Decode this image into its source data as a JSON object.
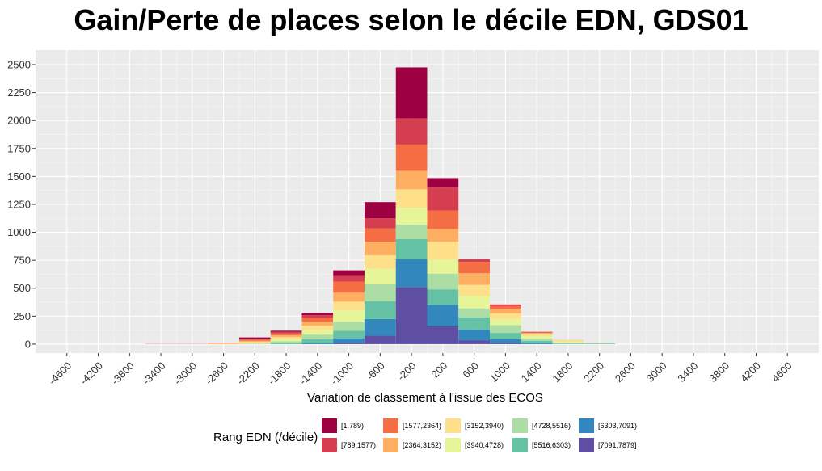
{
  "chart_data": {
    "type": "bar",
    "title": "Gain/Perte de places selon le décile EDN, GDS01",
    "xlabel": "Variation de classement à l'issue des ECOS",
    "ylabel": "",
    "xlim": [
      -5000,
      5000
    ],
    "ylim": [
      -80,
      2630
    ],
    "x_ticks": [
      -4600,
      -4200,
      -3800,
      -3400,
      -3000,
      -2600,
      -2200,
      -1800,
      -1400,
      -1000,
      -600,
      -200,
      200,
      600,
      1000,
      1400,
      1800,
      2200,
      2600,
      3000,
      3400,
      3800,
      4200,
      4600
    ],
    "y_ticks": [
      0,
      250,
      500,
      750,
      1000,
      1250,
      1500,
      1750,
      2000,
      2250,
      2500
    ],
    "bin_width": 400,
    "grid": true,
    "legend_title": "Rang EDN (/décile)",
    "legend_position": "bottom",
    "bins": [
      -3400,
      -3000,
      -2600,
      -2200,
      -1800,
      -1400,
      -1000,
      -600,
      -200,
      200,
      600,
      1000,
      1400,
      1800,
      2200
    ],
    "series": [
      {
        "name": "[1,789)",
        "color": "#9E0142",
        "values": [
          0,
          0,
          0,
          10,
          10,
          20,
          50,
          145,
          455,
          85,
          0,
          0,
          0,
          0,
          0
        ]
      },
      {
        "name": "[789,1577)",
        "color": "#D53E4F",
        "values": [
          0,
          0,
          0,
          10,
          15,
          25,
          50,
          90,
          235,
          205,
          25,
          15,
          5,
          0,
          0
        ]
      },
      {
        "name": "[1577,2364)",
        "color": "#F46D43",
        "values": [
          2,
          2,
          5,
          10,
          15,
          35,
          100,
          120,
          235,
          165,
          100,
          25,
          5,
          0,
          0
        ]
      },
      {
        "name": "[2364,3152)",
        "color": "#FDAE61",
        "values": [
          0,
          0,
          5,
          10,
          15,
          35,
          80,
          120,
          165,
          115,
          105,
          40,
          10,
          2,
          0
        ]
      },
      {
        "name": "[3152,3940)",
        "color": "#FEE08B",
        "values": [
          0,
          0,
          0,
          10,
          20,
          40,
          80,
          120,
          165,
          155,
          100,
          50,
          20,
          10,
          0
        ]
      },
      {
        "name": "[3940,4728)",
        "color": "#E6F598",
        "values": [
          0,
          0,
          2,
          5,
          20,
          40,
          100,
          140,
          150,
          130,
          110,
          55,
          20,
          10,
          0
        ]
      },
      {
        "name": "[4728,5516)",
        "color": "#ABDDA4",
        "values": [
          0,
          0,
          0,
          5,
          15,
          40,
          80,
          150,
          130,
          140,
          80,
          70,
          20,
          10,
          5
        ]
      },
      {
        "name": "[5516,6303)",
        "color": "#66C2A5",
        "values": [
          0,
          0,
          0,
          0,
          10,
          35,
          70,
          160,
          180,
          140,
          110,
          55,
          20,
          5,
          5
        ]
      },
      {
        "name": "[6303,7091)",
        "color": "#3288BD",
        "values": [
          0,
          0,
          0,
          0,
          0,
          10,
          40,
          150,
          250,
          190,
          95,
          35,
          10,
          0,
          0
        ]
      },
      {
        "name": "[7091,7879]",
        "color": "#5E4FA2",
        "values": [
          0,
          0,
          0,
          0,
          0,
          0,
          10,
          75,
          510,
          160,
          35,
          10,
          0,
          0,
          0
        ]
      }
    ]
  }
}
